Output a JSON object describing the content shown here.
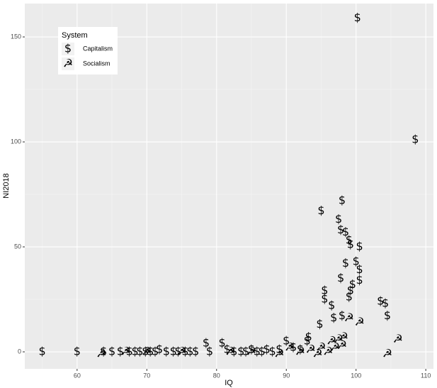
{
  "chart_data": {
    "type": "scatter",
    "x_label": "IQ",
    "y_label": "NI2018",
    "xlim": [
      52.5,
      111.1
    ],
    "ylim": [
      -8.1,
      165.9
    ],
    "xticks": [
      60,
      70,
      80,
      90,
      100,
      110
    ],
    "yticks": [
      0,
      50,
      100,
      150
    ],
    "grid": true,
    "minor_grid": true,
    "legend_title": "System",
    "legend_position": "top-left",
    "series": [
      {
        "name": "Capitalism",
        "marker": "$",
        "color": "#000000",
        "x": [
          55,
          60,
          63.8,
          65,
          66.2,
          67.5,
          68.3,
          69,
          69.8,
          70.5,
          71.2,
          71.8,
          72.8,
          73.8,
          74.5,
          75.5,
          76.2,
          77,
          78.5,
          79,
          80.8,
          81.5,
          82.5,
          83.5,
          84.2,
          85,
          85.8,
          86.5,
          87.2,
          88,
          89,
          90,
          91,
          92,
          93.2,
          93,
          94.8,
          95,
          95.5,
          95.5,
          96.5,
          96.8,
          97.5,
          97.8,
          97.8,
          98,
          98,
          98.5,
          98.5,
          99,
          99,
          99.2,
          99.2,
          99.5,
          100,
          100.2,
          100.5,
          100.5,
          100.5,
          103.5,
          104.2,
          104.5,
          108.5
        ],
        "values": [
          0,
          0,
          0,
          0,
          0,
          0,
          0,
          0,
          0,
          0,
          0,
          1,
          0,
          0,
          0,
          0,
          0,
          0,
          4,
          0,
          4,
          1,
          0,
          0,
          0,
          1,
          0,
          0,
          1,
          0,
          1,
          5,
          2,
          1,
          7,
          5,
          13,
          67,
          29,
          25,
          22,
          16,
          63,
          58,
          35,
          72,
          17,
          57,
          42,
          26,
          53,
          29,
          51,
          32,
          43,
          159,
          50,
          39,
          34,
          24,
          23,
          17,
          101
        ]
      },
      {
        "name": "Socialism",
        "marker": "☭",
        "color": "#000000",
        "x": [
          63.5,
          67,
          70,
          75,
          82,
          85,
          89,
          90.5,
          92,
          93.5,
          94.5,
          95,
          96,
          96.5,
          97,
          97.5,
          98,
          98.2,
          99,
          100.5,
          104.5,
          106
        ],
        "values": [
          -1,
          0,
          0,
          0,
          0,
          0,
          -1,
          2,
          0,
          1,
          -1,
          2,
          0,
          5,
          2,
          6,
          3,
          7,
          16,
          14,
          -1,
          6
        ]
      }
    ]
  }
}
